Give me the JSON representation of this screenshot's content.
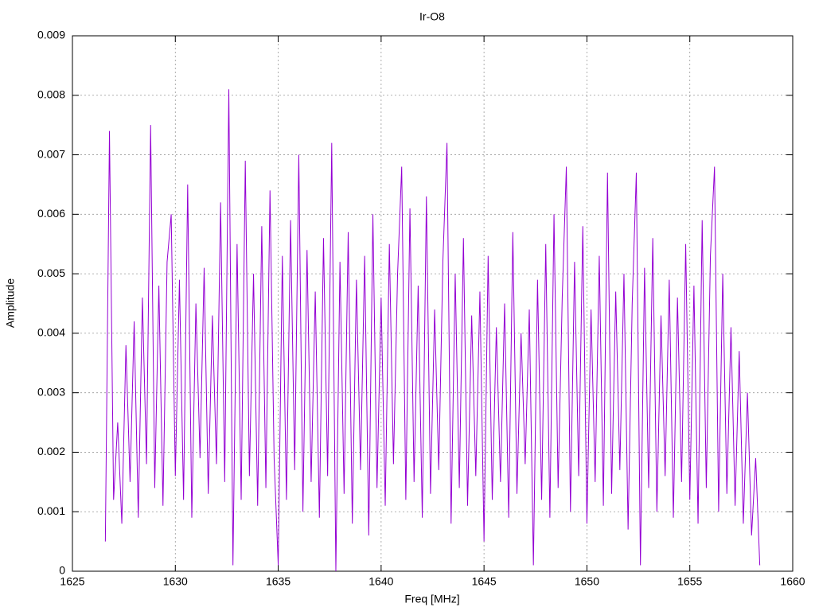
{
  "chart_data": {
    "type": "line",
    "title": "Ir-O8",
    "x_label": "Freq [MHz]",
    "y_label": "Amplitude",
    "color": "#9400d3",
    "grid": true,
    "xlim": [
      1625,
      1660
    ],
    "xticks": [
      1625,
      1630,
      1635,
      1640,
      1645,
      1650,
      1655,
      1660
    ],
    "ylim": [
      0,
      0.009
    ],
    "yticks": [
      0,
      0.001,
      0.002,
      0.003,
      0.004,
      0.005,
      0.006,
      0.007,
      0.008,
      0.009
    ],
    "x": [
      1626.6,
      1626.8,
      1627.0,
      1627.2,
      1627.4,
      1627.6,
      1627.8,
      1628.0,
      1628.2,
      1628.4,
      1628.6,
      1628.8,
      1629.0,
      1629.2,
      1629.4,
      1629.6,
      1629.8,
      1630.0,
      1630.2,
      1630.4,
      1630.6,
      1630.8,
      1631.0,
      1631.2,
      1631.4,
      1631.6,
      1631.8,
      1632.0,
      1632.2,
      1632.4,
      1632.6,
      1632.8,
      1633.0,
      1633.2,
      1633.4,
      1633.6,
      1633.8,
      1634.0,
      1634.2,
      1634.4,
      1634.6,
      1634.8,
      1635.0,
      1635.2,
      1635.4,
      1635.6,
      1635.8,
      1636.0,
      1636.2,
      1636.4,
      1636.6,
      1636.8,
      1637.0,
      1637.2,
      1637.4,
      1637.6,
      1637.8,
      1638.0,
      1638.2,
      1638.4,
      1638.6,
      1638.8,
      1639.0,
      1639.2,
      1639.4,
      1639.6,
      1639.8,
      1640.0,
      1640.2,
      1640.4,
      1640.6,
      1640.8,
      1641.0,
      1641.2,
      1641.4,
      1641.6,
      1641.8,
      1642.0,
      1642.2,
      1642.4,
      1642.6,
      1642.8,
      1643.0,
      1643.2,
      1643.4,
      1643.6,
      1643.8,
      1644.0,
      1644.2,
      1644.4,
      1644.6,
      1644.8,
      1645.0,
      1645.2,
      1645.4,
      1645.6,
      1645.8,
      1646.0,
      1646.2,
      1646.4,
      1646.6,
      1646.8,
      1647.0,
      1647.2,
      1647.4,
      1647.6,
      1647.8,
      1648.0,
      1648.2,
      1648.4,
      1648.6,
      1648.8,
      1649.0,
      1649.2,
      1649.4,
      1649.6,
      1649.8,
      1650.0,
      1650.2,
      1650.4,
      1650.6,
      1650.8,
      1651.0,
      1651.2,
      1651.4,
      1651.6,
      1651.8,
      1652.0,
      1652.2,
      1652.4,
      1652.6,
      1652.8,
      1653.0,
      1653.2,
      1653.4,
      1653.6,
      1653.8,
      1654.0,
      1654.2,
      1654.4,
      1654.6,
      1654.8,
      1655.0,
      1655.2,
      1655.4,
      1655.6,
      1655.8,
      1656.0,
      1656.2,
      1656.4,
      1656.6,
      1656.8,
      1657.0,
      1657.2,
      1657.4,
      1657.6,
      1657.8,
      1658.0,
      1658.2,
      1658.4
    ],
    "values": [
      0.0005,
      0.0074,
      0.0012,
      0.0025,
      0.0008,
      0.0038,
      0.0015,
      0.0042,
      0.0009,
      0.0046,
      0.0018,
      0.0075,
      0.0014,
      0.0048,
      0.0011,
      0.0052,
      0.006,
      0.0016,
      0.0049,
      0.0012,
      0.0065,
      0.0009,
      0.0045,
      0.0019,
      0.0051,
      0.0013,
      0.0043,
      0.0018,
      0.0062,
      0.0015,
      0.0081,
      0.0001,
      0.0055,
      0.0012,
      0.0069,
      0.0016,
      0.005,
      0.0011,
      0.0058,
      0.0014,
      0.0064,
      0.0019,
      0.0001,
      0.0053,
      0.0012,
      0.0059,
      0.0017,
      0.007,
      0.001,
      0.0054,
      0.0015,
      0.0047,
      0.0009,
      0.0056,
      0.0016,
      0.0072,
      0.0,
      0.0052,
      0.0013,
      0.0057,
      0.0008,
      0.0049,
      0.0017,
      0.0053,
      0.0006,
      0.006,
      0.0014,
      0.0046,
      0.0011,
      0.0055,
      0.0018,
      0.005,
      0.0068,
      0.0012,
      0.0061,
      0.0015,
      0.0048,
      0.0009,
      0.0063,
      0.0013,
      0.0044,
      0.0017,
      0.0052,
      0.0072,
      0.0008,
      0.005,
      0.0014,
      0.0056,
      0.0011,
      0.0043,
      0.0016,
      0.0047,
      0.0005,
      0.0053,
      0.0012,
      0.0041,
      0.0015,
      0.0045,
      0.0009,
      0.0057,
      0.0013,
      0.004,
      0.0018,
      0.0044,
      0.0001,
      0.0049,
      0.0012,
      0.0055,
      0.0009,
      0.006,
      0.0014,
      0.0046,
      0.0068,
      0.001,
      0.0052,
      0.0016,
      0.0058,
      0.0008,
      0.0044,
      0.0015,
      0.0053,
      0.0011,
      0.0067,
      0.0013,
      0.0047,
      0.0017,
      0.005,
      0.0007,
      0.0045,
      0.0067,
      0.0001,
      0.0051,
      0.0014,
      0.0056,
      0.001,
      0.0043,
      0.0016,
      0.0049,
      0.0009,
      0.0046,
      0.0015,
      0.0055,
      0.0012,
      0.0048,
      0.0008,
      0.0059,
      0.0014,
      0.0053,
      0.0068,
      0.001,
      0.005,
      0.0013,
      0.0041,
      0.0011,
      0.0037,
      0.0008,
      0.003,
      0.0006,
      0.0019,
      0.0001
    ]
  }
}
